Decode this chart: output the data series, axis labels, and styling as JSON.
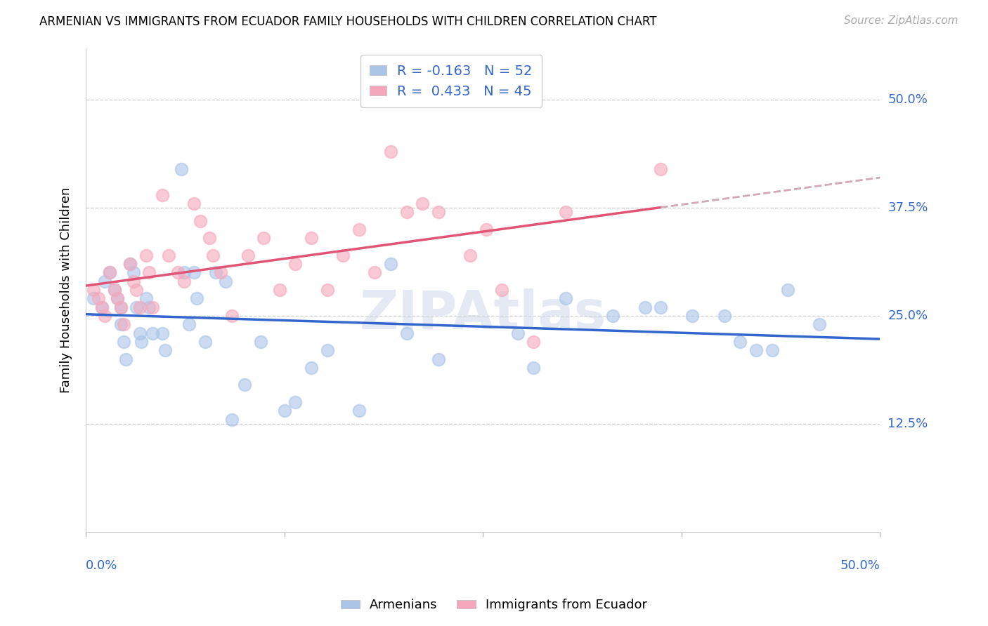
{
  "title": "ARMENIAN VS IMMIGRANTS FROM ECUADOR FAMILY HOUSEHOLDS WITH CHILDREN CORRELATION CHART",
  "source": "Source: ZipAtlas.com",
  "ylabel": "Family Households with Children",
  "ytick_labels": [
    "12.5%",
    "25.0%",
    "37.5%",
    "50.0%"
  ],
  "ytick_values": [
    0.125,
    0.25,
    0.375,
    0.5
  ],
  "xlim": [
    0.0,
    0.5
  ],
  "ylim": [
    0.0,
    0.56
  ],
  "legend_armenian_R": "-0.163",
  "legend_armenian_N": "52",
  "legend_ecuador_R": "0.433",
  "legend_ecuador_N": "45",
  "armenian_color": "#aac4e8",
  "ecuador_color": "#f5a8bc",
  "armenian_line_color": "#3366cc",
  "ecuador_line_color": "#e05575",
  "dashed_line_color": "#d0a8b8",
  "watermark": "ZIPAtlas",
  "armenian_x": [
    0.005,
    0.01,
    0.012,
    0.015,
    0.018,
    0.02,
    0.022,
    0.022,
    0.024,
    0.025,
    0.028,
    0.03,
    0.032,
    0.034,
    0.035,
    0.038,
    0.04,
    0.042,
    0.048,
    0.05,
    0.06,
    0.062,
    0.065,
    0.068,
    0.07,
    0.075,
    0.082,
    0.088,
    0.092,
    0.1,
    0.11,
    0.125,
    0.132,
    0.142,
    0.152,
    0.172,
    0.192,
    0.202,
    0.222,
    0.272,
    0.282,
    0.302,
    0.332,
    0.352,
    0.362,
    0.382,
    0.402,
    0.412,
    0.422,
    0.432,
    0.442,
    0.462
  ],
  "armenian_y": [
    0.27,
    0.26,
    0.29,
    0.3,
    0.28,
    0.27,
    0.26,
    0.24,
    0.22,
    0.2,
    0.31,
    0.3,
    0.26,
    0.23,
    0.22,
    0.27,
    0.26,
    0.23,
    0.23,
    0.21,
    0.42,
    0.3,
    0.24,
    0.3,
    0.27,
    0.22,
    0.3,
    0.29,
    0.13,
    0.17,
    0.22,
    0.14,
    0.15,
    0.19,
    0.21,
    0.14,
    0.31,
    0.23,
    0.2,
    0.23,
    0.19,
    0.27,
    0.25,
    0.26,
    0.26,
    0.25,
    0.25,
    0.22,
    0.21,
    0.21,
    0.28,
    0.24
  ],
  "ecuador_x": [
    0.005,
    0.008,
    0.01,
    0.012,
    0.015,
    0.018,
    0.02,
    0.022,
    0.024,
    0.028,
    0.03,
    0.032,
    0.034,
    0.038,
    0.04,
    0.042,
    0.048,
    0.052,
    0.058,
    0.062,
    0.068,
    0.072,
    0.078,
    0.08,
    0.085,
    0.092,
    0.102,
    0.112,
    0.122,
    0.132,
    0.142,
    0.152,
    0.162,
    0.172,
    0.182,
    0.192,
    0.202,
    0.212,
    0.222,
    0.242,
    0.252,
    0.262,
    0.282,
    0.302,
    0.362
  ],
  "ecuador_y": [
    0.28,
    0.27,
    0.26,
    0.25,
    0.3,
    0.28,
    0.27,
    0.26,
    0.24,
    0.31,
    0.29,
    0.28,
    0.26,
    0.32,
    0.3,
    0.26,
    0.39,
    0.32,
    0.3,
    0.29,
    0.38,
    0.36,
    0.34,
    0.32,
    0.3,
    0.25,
    0.32,
    0.34,
    0.28,
    0.31,
    0.34,
    0.28,
    0.32,
    0.35,
    0.3,
    0.44,
    0.37,
    0.38,
    0.37,
    0.32,
    0.35,
    0.28,
    0.22,
    0.37,
    0.42
  ]
}
